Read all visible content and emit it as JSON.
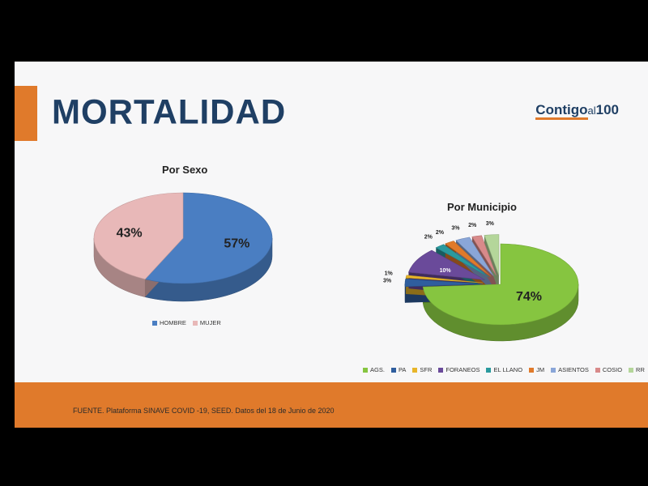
{
  "slide": {
    "title": "MORTALIDAD",
    "logo": {
      "part1": "Contigo",
      "part2": "al",
      "part3": "100"
    },
    "source": "FUENTE. Plataforma SINAVE COVID -19, SEED. Datos del 18 de Junio de 2020"
  },
  "chart_data": [
    {
      "type": "pie",
      "title": "Por Sexo",
      "labels": [
        "HOMBRE",
        "MUJER"
      ],
      "values": [
        57,
        43
      ],
      "data_labels": [
        "57%",
        "43%"
      ],
      "colors": [
        "#4a7ec2",
        "#e8b8b8"
      ],
      "legend_position": "bottom"
    },
    {
      "type": "pie",
      "title": "Por Municipio",
      "labels": [
        "AGS.",
        "PA",
        "SFR",
        "FORANEOS",
        "EL LLANO",
        "JM",
        "ASIENTOS",
        "COSIO",
        "RR"
      ],
      "values": [
        74,
        3,
        1,
        10,
        2,
        2,
        3,
        2,
        3
      ],
      "data_labels": [
        "74%",
        "3%",
        "1%",
        "10%",
        "2%",
        "2%",
        "3%",
        "2%",
        "3%"
      ],
      "colors": [
        "#86c540",
        "#2f5e9e",
        "#e8b52a",
        "#6a4a9a",
        "#2a9a9e",
        "#e07a2b",
        "#8aa6d8",
        "#d88a8a",
        "#b4d69a"
      ],
      "legend_position": "bottom"
    }
  ]
}
